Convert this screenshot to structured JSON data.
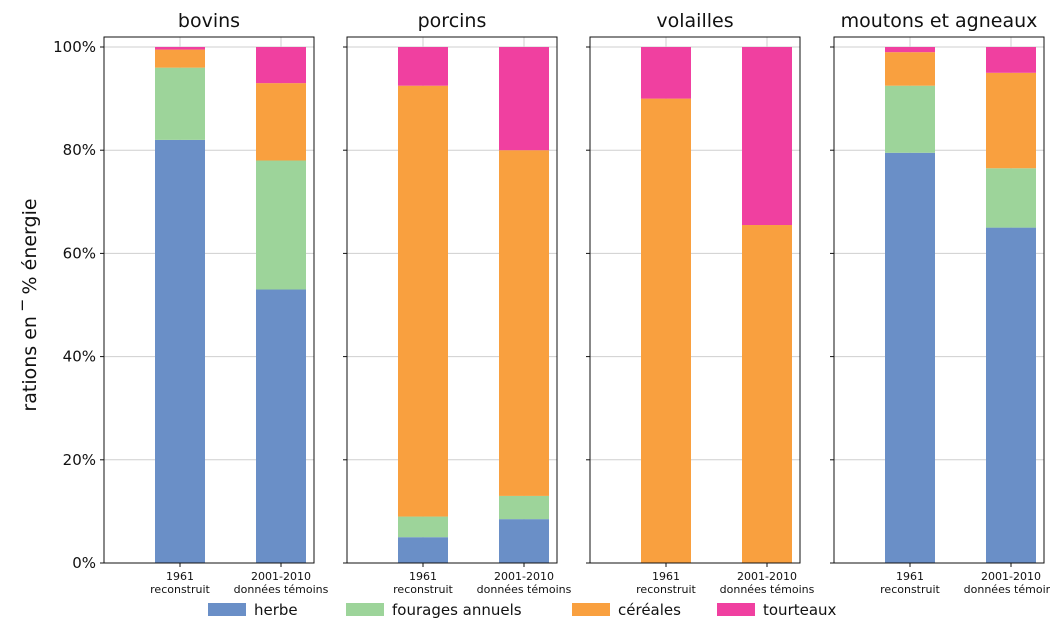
{
  "chart_data": {
    "type": "bar",
    "stacked": true,
    "ylabel": "rations en ‾ % énergie",
    "ylim": [
      0,
      100
    ],
    "yticks": [
      "0%",
      "20%",
      "40%",
      "60%",
      "80%",
      "100%"
    ],
    "grid": true,
    "legend_placement": "bottom",
    "series": [
      {
        "name": "herbe",
        "color": "#6a8fc7"
      },
      {
        "name": "fourages annuels",
        "color": "#9dd49a"
      },
      {
        "name": "céréales",
        "color": "#f9a03f"
      },
      {
        "name": "tourteaux",
        "color": "#f040a0"
      }
    ],
    "panels": [
      {
        "title": "bovins",
        "categories": [
          {
            "line1": "1961",
            "line2": "reconstruit"
          },
          {
            "line1": "2001-2010",
            "line2": "données témoins"
          }
        ],
        "values": [
          [
            82,
            14,
            3.5,
            0.5
          ],
          [
            53,
            25,
            15,
            7
          ]
        ]
      },
      {
        "title": "porcins",
        "categories": [
          {
            "line1": "1961",
            "line2": "reconstruit"
          },
          {
            "line1": "2001-2010",
            "line2": "données témoins"
          }
        ],
        "values": [
          [
            5,
            4,
            83.5,
            7.5
          ],
          [
            8.5,
            4.5,
            67,
            20
          ]
        ]
      },
      {
        "title": "volailles",
        "categories": [
          {
            "line1": "1961",
            "line2": "reconstruit"
          },
          {
            "line1": "2001-2010",
            "line2": "données témoins"
          }
        ],
        "values": [
          [
            0,
            0,
            90,
            10
          ],
          [
            0,
            0,
            65.5,
            34.5
          ]
        ]
      },
      {
        "title": "moutons et agneaux",
        "categories": [
          {
            "line1": "1961",
            "line2": "reconstruit"
          },
          {
            "line1": "2001-2010",
            "line2": "données témoins"
          }
        ],
        "values": [
          [
            79.5,
            13,
            6.5,
            1
          ],
          [
            65,
            11.5,
            18.5,
            5
          ]
        ]
      }
    ]
  }
}
